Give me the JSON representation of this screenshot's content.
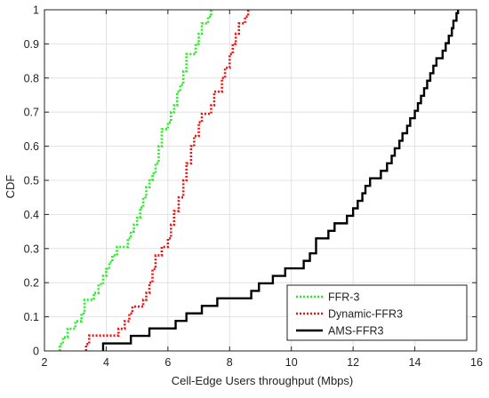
{
  "chart_data": {
    "type": "line",
    "style": "step",
    "title": "",
    "xlabel": "Cell-Edge Users throughput (Mbps)",
    "ylabel": "CDF",
    "xlim": [
      2,
      16
    ],
    "ylim": [
      0,
      1
    ],
    "x_ticks": [
      2,
      4,
      6,
      8,
      10,
      12,
      14,
      16
    ],
    "y_ticks": [
      0,
      0.1,
      0.2,
      0.3,
      0.4,
      0.5,
      0.6,
      0.7,
      0.8,
      0.9,
      1
    ],
    "grid": true,
    "legend_position": "bottom-right",
    "series": [
      {
        "name": "FFR-3",
        "color": "#22ee22",
        "line_style": "dotted",
        "points": [
          [
            2.5,
            0
          ],
          [
            2.5,
            0.02
          ],
          [
            2.6,
            0.02
          ],
          [
            2.6,
            0.04
          ],
          [
            2.75,
            0.04
          ],
          [
            2.75,
            0.065
          ],
          [
            3.0,
            0.065
          ],
          [
            3.0,
            0.087
          ],
          [
            3.2,
            0.087
          ],
          [
            3.2,
            0.11
          ],
          [
            3.3,
            0.11
          ],
          [
            3.3,
            0.15
          ],
          [
            3.6,
            0.15
          ],
          [
            3.6,
            0.17
          ],
          [
            3.75,
            0.17
          ],
          [
            3.75,
            0.195
          ],
          [
            3.9,
            0.195
          ],
          [
            3.9,
            0.22
          ],
          [
            4.0,
            0.22
          ],
          [
            4.0,
            0.24
          ],
          [
            4.1,
            0.24
          ],
          [
            4.1,
            0.26
          ],
          [
            4.2,
            0.26
          ],
          [
            4.2,
            0.28
          ],
          [
            4.35,
            0.28
          ],
          [
            4.35,
            0.305
          ],
          [
            4.7,
            0.305
          ],
          [
            4.7,
            0.33
          ],
          [
            4.8,
            0.33
          ],
          [
            4.8,
            0.35
          ],
          [
            4.9,
            0.35
          ],
          [
            4.9,
            0.37
          ],
          [
            5.0,
            0.37
          ],
          [
            5.0,
            0.39
          ],
          [
            5.1,
            0.39
          ],
          [
            5.1,
            0.42
          ],
          [
            5.2,
            0.42
          ],
          [
            5.2,
            0.45
          ],
          [
            5.3,
            0.45
          ],
          [
            5.3,
            0.48
          ],
          [
            5.4,
            0.48
          ],
          [
            5.4,
            0.5
          ],
          [
            5.5,
            0.5
          ],
          [
            5.5,
            0.52
          ],
          [
            5.6,
            0.52
          ],
          [
            5.6,
            0.55
          ],
          [
            5.7,
            0.55
          ],
          [
            5.7,
            0.6
          ],
          [
            5.8,
            0.6
          ],
          [
            5.8,
            0.65
          ],
          [
            6.0,
            0.65
          ],
          [
            6.0,
            0.67
          ],
          [
            6.1,
            0.67
          ],
          [
            6.1,
            0.7
          ],
          [
            6.2,
            0.7
          ],
          [
            6.2,
            0.72
          ],
          [
            6.3,
            0.72
          ],
          [
            6.3,
            0.76
          ],
          [
            6.4,
            0.76
          ],
          [
            6.4,
            0.78
          ],
          [
            6.5,
            0.78
          ],
          [
            6.5,
            0.82
          ],
          [
            6.6,
            0.82
          ],
          [
            6.6,
            0.87
          ],
          [
            6.9,
            0.87
          ],
          [
            6.9,
            0.9
          ],
          [
            7.0,
            0.9
          ],
          [
            7.0,
            0.93
          ],
          [
            7.1,
            0.93
          ],
          [
            7.1,
            0.96
          ],
          [
            7.3,
            0.96
          ],
          [
            7.3,
            0.98
          ],
          [
            7.4,
            0.98
          ],
          [
            7.4,
            1.0
          ]
        ]
      },
      {
        "name": "Dynamic-FFR3",
        "color": "#ee1111",
        "line_style": "dotted",
        "points": [
          [
            3.35,
            0
          ],
          [
            3.35,
            0.02
          ],
          [
            3.45,
            0.02
          ],
          [
            3.45,
            0.045
          ],
          [
            4.4,
            0.045
          ],
          [
            4.4,
            0.065
          ],
          [
            4.6,
            0.065
          ],
          [
            4.6,
            0.087
          ],
          [
            4.75,
            0.087
          ],
          [
            4.75,
            0.11
          ],
          [
            4.85,
            0.11
          ],
          [
            4.85,
            0.13
          ],
          [
            5.2,
            0.13
          ],
          [
            5.2,
            0.15
          ],
          [
            5.3,
            0.15
          ],
          [
            5.3,
            0.17
          ],
          [
            5.4,
            0.17
          ],
          [
            5.4,
            0.2
          ],
          [
            5.5,
            0.2
          ],
          [
            5.5,
            0.24
          ],
          [
            5.6,
            0.24
          ],
          [
            5.6,
            0.28
          ],
          [
            5.8,
            0.28
          ],
          [
            5.8,
            0.305
          ],
          [
            6.0,
            0.305
          ],
          [
            6.0,
            0.33
          ],
          [
            6.1,
            0.33
          ],
          [
            6.1,
            0.37
          ],
          [
            6.2,
            0.37
          ],
          [
            6.2,
            0.41
          ],
          [
            6.35,
            0.41
          ],
          [
            6.35,
            0.45
          ],
          [
            6.5,
            0.45
          ],
          [
            6.5,
            0.5
          ],
          [
            6.6,
            0.5
          ],
          [
            6.6,
            0.55
          ],
          [
            6.75,
            0.55
          ],
          [
            6.75,
            0.6
          ],
          [
            6.85,
            0.6
          ],
          [
            6.85,
            0.63
          ],
          [
            7.0,
            0.63
          ],
          [
            7.0,
            0.67
          ],
          [
            7.1,
            0.67
          ],
          [
            7.1,
            0.695
          ],
          [
            7.4,
            0.695
          ],
          [
            7.4,
            0.72
          ],
          [
            7.5,
            0.72
          ],
          [
            7.5,
            0.76
          ],
          [
            7.75,
            0.76
          ],
          [
            7.75,
            0.8
          ],
          [
            7.85,
            0.8
          ],
          [
            7.85,
            0.83
          ],
          [
            8.0,
            0.83
          ],
          [
            8.0,
            0.87
          ],
          [
            8.1,
            0.87
          ],
          [
            8.1,
            0.9
          ],
          [
            8.2,
            0.9
          ],
          [
            8.2,
            0.93
          ],
          [
            8.3,
            0.93
          ],
          [
            8.3,
            0.96
          ],
          [
            8.5,
            0.96
          ],
          [
            8.5,
            0.98
          ],
          [
            8.6,
            0.98
          ],
          [
            8.6,
            1.0
          ]
        ]
      },
      {
        "name": "AMS-FFR3",
        "color": "#000000",
        "line_style": "solid",
        "points": [
          [
            3.9,
            0
          ],
          [
            3.9,
            0.022
          ],
          [
            4.8,
            0.022
          ],
          [
            4.8,
            0.044
          ],
          [
            5.4,
            0.044
          ],
          [
            5.4,
            0.066
          ],
          [
            6.25,
            0.066
          ],
          [
            6.25,
            0.088
          ],
          [
            6.6,
            0.088
          ],
          [
            6.6,
            0.11
          ],
          [
            7.1,
            0.11
          ],
          [
            7.1,
            0.132
          ],
          [
            7.6,
            0.132
          ],
          [
            7.6,
            0.154
          ],
          [
            8.7,
            0.154
          ],
          [
            8.7,
            0.176
          ],
          [
            8.95,
            0.176
          ],
          [
            8.95,
            0.198
          ],
          [
            9.4,
            0.198
          ],
          [
            9.4,
            0.22
          ],
          [
            9.8,
            0.22
          ],
          [
            9.8,
            0.242
          ],
          [
            10.4,
            0.242
          ],
          [
            10.4,
            0.264
          ],
          [
            10.6,
            0.264
          ],
          [
            10.6,
            0.286
          ],
          [
            10.8,
            0.286
          ],
          [
            10.8,
            0.308
          ],
          [
            10.8,
            0.33
          ],
          [
            11.2,
            0.33
          ],
          [
            11.2,
            0.352
          ],
          [
            11.4,
            0.352
          ],
          [
            11.4,
            0.374
          ],
          [
            11.8,
            0.374
          ],
          [
            11.8,
            0.396
          ],
          [
            12.0,
            0.396
          ],
          [
            12.0,
            0.418
          ],
          [
            12.15,
            0.418
          ],
          [
            12.15,
            0.44
          ],
          [
            12.3,
            0.44
          ],
          [
            12.3,
            0.462
          ],
          [
            12.4,
            0.462
          ],
          [
            12.4,
            0.484
          ],
          [
            12.55,
            0.484
          ],
          [
            12.55,
            0.506
          ],
          [
            12.9,
            0.506
          ],
          [
            12.9,
            0.528
          ],
          [
            13.1,
            0.528
          ],
          [
            13.1,
            0.55
          ],
          [
            13.25,
            0.55
          ],
          [
            13.25,
            0.572
          ],
          [
            13.35,
            0.572
          ],
          [
            13.35,
            0.594
          ],
          [
            13.5,
            0.594
          ],
          [
            13.5,
            0.616
          ],
          [
            13.6,
            0.616
          ],
          [
            13.6,
            0.638
          ],
          [
            13.75,
            0.638
          ],
          [
            13.75,
            0.66
          ],
          [
            13.85,
            0.66
          ],
          [
            13.85,
            0.682
          ],
          [
            14.0,
            0.682
          ],
          [
            14.0,
            0.704
          ],
          [
            14.1,
            0.704
          ],
          [
            14.1,
            0.726
          ],
          [
            14.2,
            0.726
          ],
          [
            14.2,
            0.748
          ],
          [
            14.3,
            0.748
          ],
          [
            14.3,
            0.77
          ],
          [
            14.4,
            0.77
          ],
          [
            14.4,
            0.792
          ],
          [
            14.5,
            0.792
          ],
          [
            14.5,
            0.814
          ],
          [
            14.6,
            0.814
          ],
          [
            14.6,
            0.836
          ],
          [
            14.7,
            0.836
          ],
          [
            14.7,
            0.858
          ],
          [
            14.9,
            0.858
          ],
          [
            14.9,
            0.88
          ],
          [
            15.0,
            0.88
          ],
          [
            15.0,
            0.902
          ],
          [
            15.1,
            0.902
          ],
          [
            15.1,
            0.924
          ],
          [
            15.2,
            0.924
          ],
          [
            15.2,
            0.946
          ],
          [
            15.25,
            0.946
          ],
          [
            15.25,
            0.968
          ],
          [
            15.35,
            0.968
          ],
          [
            15.35,
            0.99
          ],
          [
            15.4,
            0.99
          ],
          [
            15.4,
            1.0
          ]
        ]
      }
    ]
  }
}
